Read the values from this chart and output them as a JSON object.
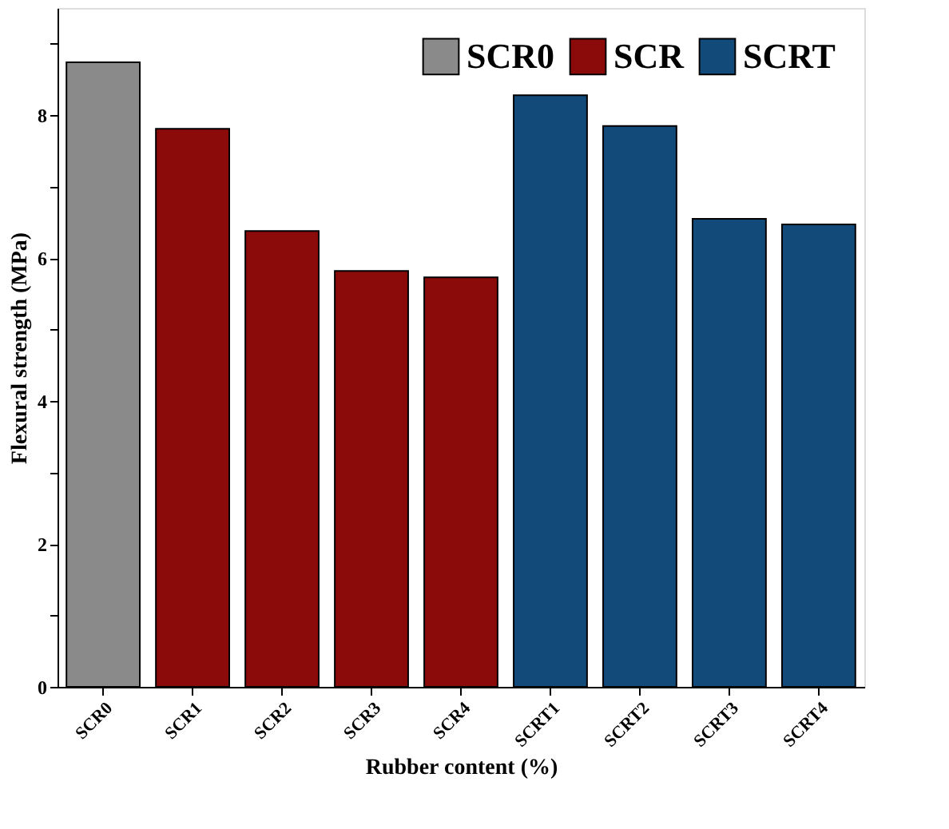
{
  "chart_data": {
    "type": "bar",
    "xlabel": "Rubber content (%)",
    "ylabel": "Flexural strength (MPa)",
    "categories": [
      "SCR0",
      "SCR1",
      "SCR2",
      "SCR3",
      "SCR4",
      "SCRT1",
      "SCRT2",
      "SCRT3",
      "SCRT4"
    ],
    "series": [
      {
        "name": "SCR0",
        "color": "#8a8a8a",
        "values": [
          8.74,
          null,
          null,
          null,
          null,
          null,
          null,
          null,
          null
        ]
      },
      {
        "name": "SCR",
        "color": "#8b0a0a",
        "values": [
          null,
          7.81,
          6.38,
          5.82,
          5.73,
          null,
          null,
          null,
          null
        ]
      },
      {
        "name": "SCRT",
        "color": "#124a7a",
        "values": [
          null,
          null,
          null,
          null,
          null,
          8.28,
          7.85,
          6.55,
          6.47
        ]
      }
    ],
    "ylim": [
      0,
      9.5
    ],
    "yticks": [
      0,
      {
        "value": 1,
        "label": null
      },
      2,
      {
        "value": 3,
        "label": null
      },
      4,
      {
        "value": 5,
        "label": null
      },
      6,
      {
        "value": 7,
        "label": null
      },
      8,
      {
        "value": 9,
        "label": null
      }
    ],
    "grid": false,
    "legend": "top right"
  }
}
